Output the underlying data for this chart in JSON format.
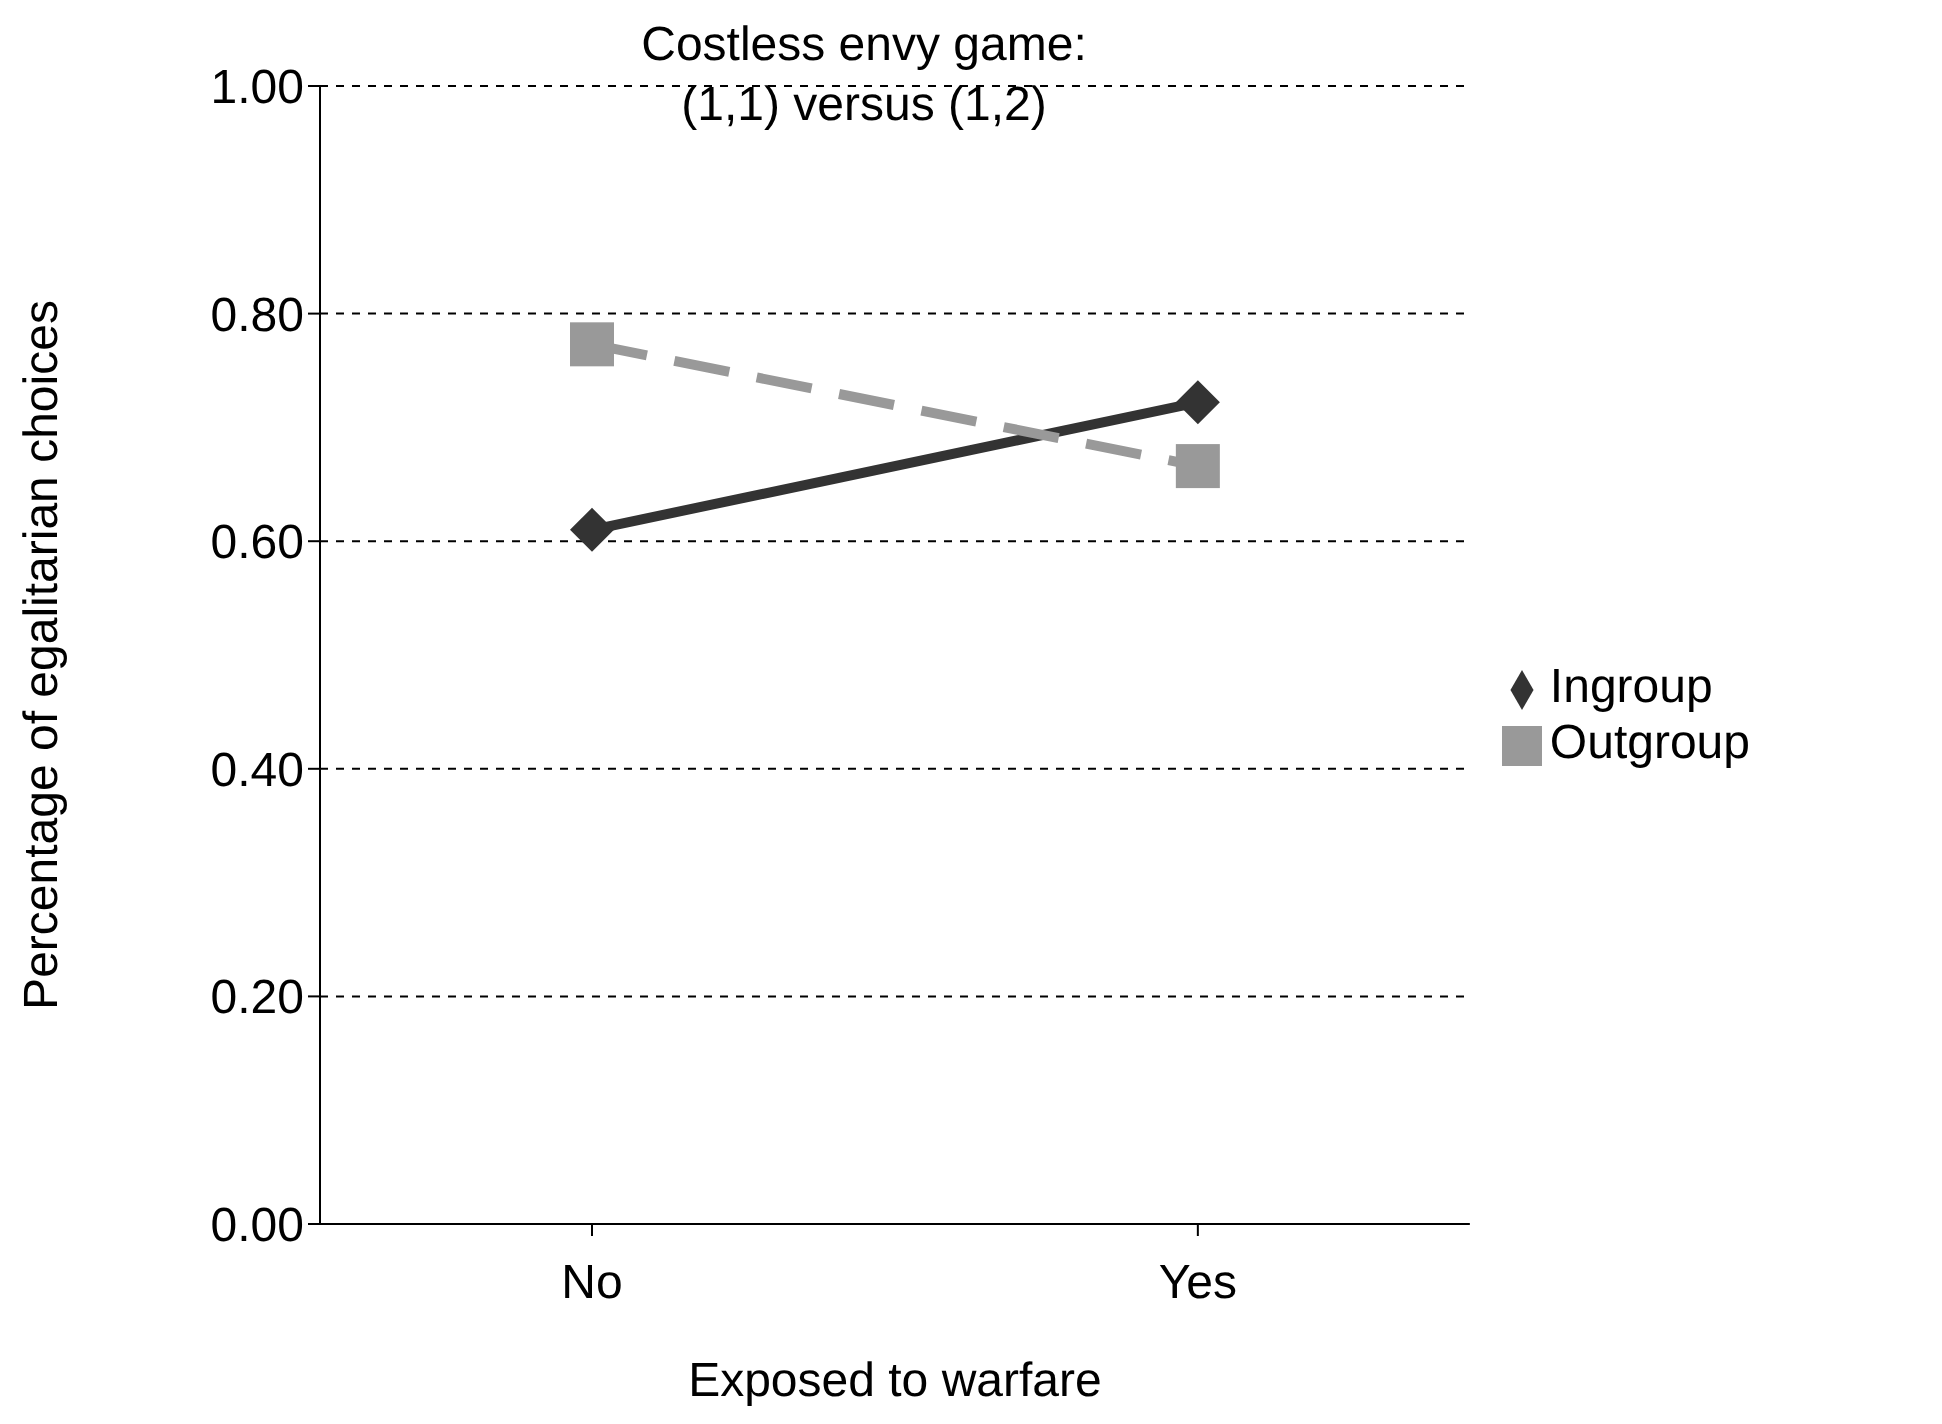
{
  "chart_data": {
    "type": "line",
    "title": "Costless envy game: (1,1) versus (1,2)",
    "xlabel": "Exposed to warfare",
    "ylabel": "Percentage of egalitarian choices",
    "categories": [
      "No",
      "Yes"
    ],
    "series": [
      {
        "name": "Ingroup",
        "color": "#333333",
        "values": [
          0.61,
          0.722
        ],
        "marker": "diamond",
        "line_style": "solid"
      },
      {
        "name": "Outgroup",
        "color": "#999999",
        "values": [
          0.773,
          0.666
        ],
        "marker": "square",
        "line_style": "dashed"
      }
    ],
    "ylim": [
      0,
      1
    ],
    "yticks": [
      {
        "value": 0,
        "label": "0.00"
      },
      {
        "value": 0.2,
        "label": "0.20"
      },
      {
        "value": 0.4,
        "label": "0.40"
      },
      {
        "value": 0.6,
        "label": "0.60"
      },
      {
        "value": 0.8,
        "label": "0.80"
      },
      {
        "value": 1,
        "label": "1.00"
      }
    ],
    "grid": "y",
    "legend": "right"
  }
}
